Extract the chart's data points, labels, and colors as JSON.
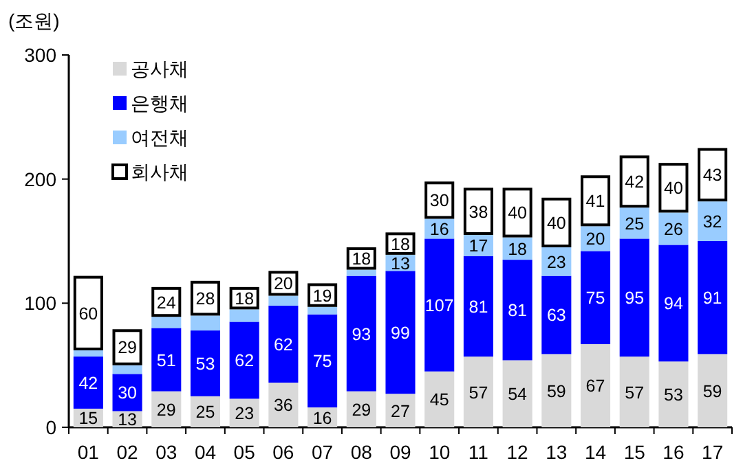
{
  "chart_data": {
    "type": "bar",
    "stacked": true,
    "ylabel": "(조원)",
    "categories": [
      "01",
      "02",
      "03",
      "04",
      "05",
      "06",
      "07",
      "08",
      "09",
      "10",
      "11",
      "12",
      "13",
      "14",
      "15",
      "16",
      "17"
    ],
    "ylim": [
      0,
      300
    ],
    "yticks": [
      0,
      100,
      200,
      300
    ],
    "legend": "top left",
    "series": [
      {
        "name": "공사채",
        "color": "#d9d9d9",
        "values": [
          15,
          13,
          29,
          25,
          23,
          36,
          16,
          29,
          27,
          45,
          57,
          54,
          59,
          67,
          57,
          53,
          59
        ],
        "value_labels": [
          "15",
          "13",
          "29",
          "25",
          "23",
          "36",
          "16",
          "29",
          "27",
          "45",
          "57",
          "54",
          "59",
          "67",
          "57",
          "53",
          "59"
        ]
      },
      {
        "name": "은행채",
        "color": "#0000ff",
        "values": [
          42,
          30,
          51,
          53,
          62,
          62,
          75,
          93,
          99,
          107,
          81,
          81,
          63,
          75,
          95,
          94,
          91
        ],
        "value_labels": [
          "42",
          "30",
          "51",
          "53",
          "62",
          "62",
          "75",
          "93",
          "99",
          "107",
          "81",
          "81",
          "63",
          "75",
          "95",
          "94",
          "91"
        ]
      },
      {
        "name": "여전채",
        "color": "#99ccff",
        "values": [
          5,
          7,
          9,
          12,
          10,
          8,
          6,
          5,
          13,
          16,
          17,
          18,
          23,
          20,
          25,
          26,
          32
        ],
        "value_labels": [
          null,
          null,
          null,
          null,
          null,
          null,
          null,
          null,
          "13",
          "16",
          "17",
          "18",
          "23",
          "20",
          "25",
          "26",
          "32"
        ]
      },
      {
        "name": "회사채",
        "color": "#ffffff",
        "values": [
          60,
          29,
          24,
          28,
          18,
          20,
          19,
          18,
          18,
          30,
          38,
          40,
          40,
          41,
          42,
          40,
          43
        ],
        "value_labels": [
          "60",
          "29",
          "24",
          "28",
          "18",
          "20",
          "19",
          "18",
          "18",
          "30",
          "38",
          "40",
          "40",
          "41",
          "42",
          "40",
          "43"
        ]
      }
    ]
  }
}
